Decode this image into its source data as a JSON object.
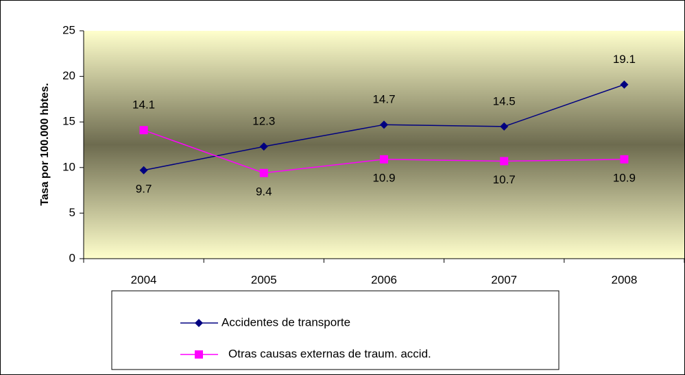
{
  "chart_data": {
    "type": "line",
    "y_label": "Tasa por 100.000 hbtes.",
    "categories": [
      "2004",
      "2005",
      "2006",
      "2007",
      "2008"
    ],
    "series": [
      {
        "name": "Accidentes de transporte",
        "color": "#000080",
        "marker": "diamond",
        "values": [
          9.7,
          12.3,
          14.7,
          14.5,
          19.1
        ]
      },
      {
        "name": "Otras causas externas de traum. accid.",
        "color": "#ff00ff",
        "marker": "square",
        "values": [
          14.1,
          9.4,
          10.9,
          10.7,
          10.9
        ]
      }
    ],
    "ylim": [
      0,
      25
    ],
    "yticks": [
      0,
      5,
      10,
      15,
      20,
      25
    ],
    "legend": "bottom"
  }
}
